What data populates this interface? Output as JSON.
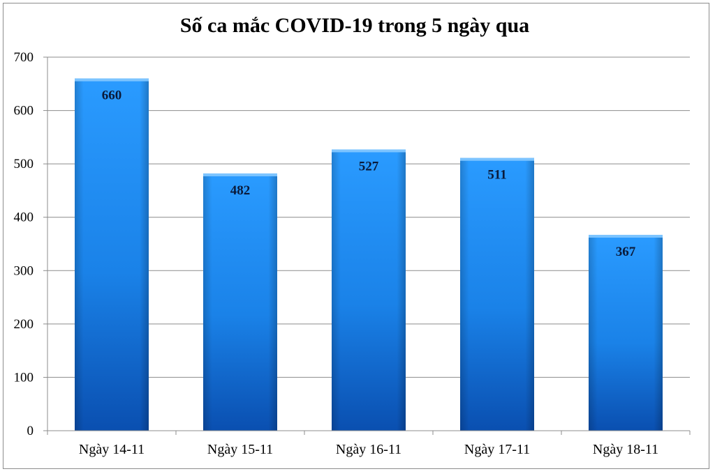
{
  "chart_data": {
    "type": "bar",
    "title": "Số ca mắc COVID-19 trong 5 ngày qua",
    "categories": [
      "Ngày 14-11",
      "Ngày 15-11",
      "Ngày 16-11",
      "Ngày 17-11",
      "Ngày 18-11"
    ],
    "values": [
      660,
      482,
      527,
      511,
      367
    ],
    "data_labels": [
      "660",
      "482",
      "527",
      "511",
      "367"
    ],
    "xlabel": "",
    "ylabel": "",
    "ylim": [
      0,
      700
    ],
    "yticks": [
      0,
      100,
      200,
      300,
      400,
      500,
      600,
      700
    ],
    "grid": true,
    "legend": "none",
    "bar_color": "#1e8ef0"
  }
}
